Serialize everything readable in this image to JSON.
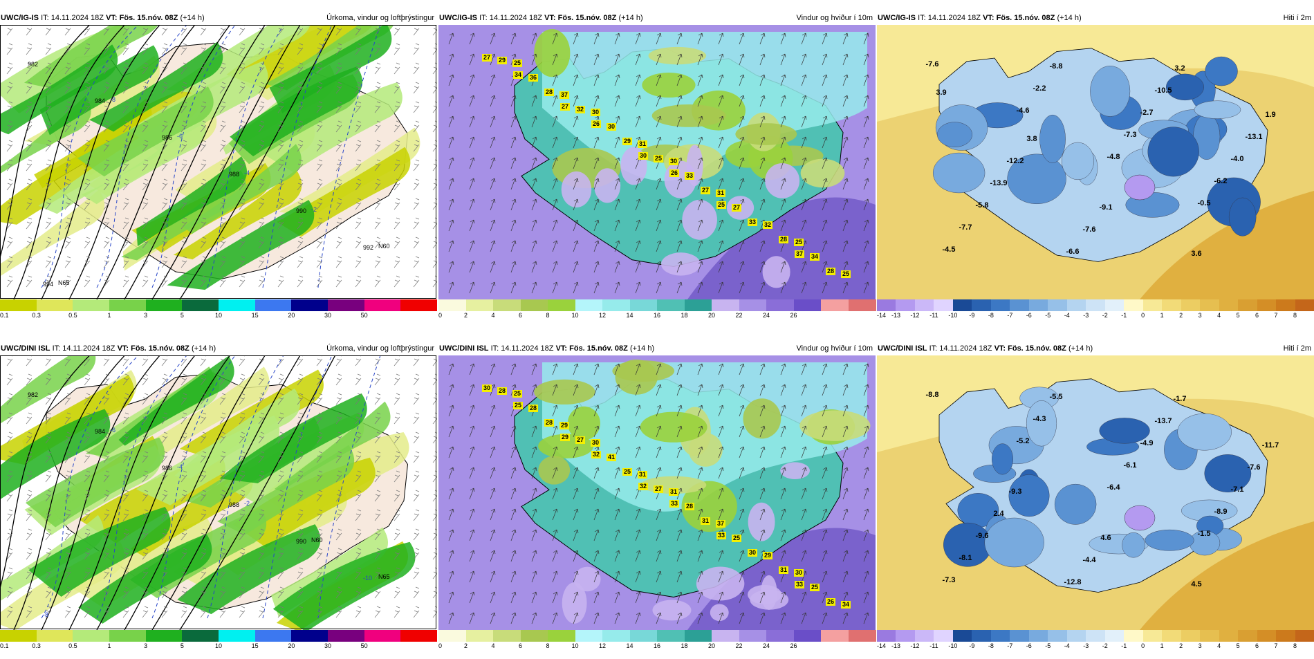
{
  "panels": [
    {
      "model": "UWC/IG-IS",
      "it_label": "IT:",
      "it": "14.11.2024 18Z",
      "vt_label": "VT:",
      "vt": "Fös. 15.nóv. 08Z",
      "lead": "(+14 h)",
      "title": "Úrkoma, vindur og loftþrýstingur",
      "type": "precip"
    },
    {
      "model": "UWC/IG-IS",
      "it_label": "IT:",
      "it": "14.11.2024 18Z",
      "vt_label": "VT:",
      "vt": "Fös. 15.nóv. 08Z",
      "lead": "(+14 h)",
      "title": "Vindur og hviður í 10m",
      "type": "wind"
    },
    {
      "model": "UWC/IG-IS",
      "it_label": "IT:",
      "it": "14.11.2024 18Z",
      "vt_label": "VT:",
      "vt": "Fös. 15.nóv. 08Z",
      "lead": "(+14 h)",
      "title": "Hiti í 2m",
      "type": "temp"
    },
    {
      "model": "UWC/DINI ISL",
      "it_label": "IT:",
      "it": "14.11.2024 18Z",
      "vt_label": "VT:",
      "vt": "Fös. 15.nóv. 08Z",
      "lead": "(+14 h)",
      "title": "Úrkoma, vindur og loftþrýstingur",
      "type": "precip"
    },
    {
      "model": "UWC/DINI ISL",
      "it_label": "IT:",
      "it": "14.11.2024 18Z",
      "vt_label": "VT:",
      "vt": "Fös. 15.nóv. 08Z",
      "lead": "(+14 h)",
      "title": "Vindur og hviður í 10m",
      "type": "wind"
    },
    {
      "model": "UWC/DINI ISL",
      "it_label": "IT:",
      "it": "14.11.2024 18Z",
      "vt_label": "VT:",
      "vt": "Fös. 15.nóv. 08Z",
      "lead": "(+14 h)",
      "title": "Hiti í 2m",
      "type": "temp"
    }
  ],
  "colorbars": {
    "precip": {
      "ticks": [
        "0.1",
        "0.3",
        "0.5",
        "1",
        "3",
        "5",
        "10",
        "15",
        "20",
        "30",
        "50"
      ],
      "colors": [
        "#c8d200",
        "#dfe65a",
        "#b4ea7a",
        "#78d24a",
        "#1fb01f",
        "#0a6a3c",
        "#00f0f0",
        "#3c78f0",
        "#00008c",
        "#78007e",
        "#f0007e",
        "#f00000"
      ]
    },
    "wind": {
      "ticks": [
        "0",
        "2",
        "4",
        "6",
        "8",
        "10",
        "12",
        "14",
        "16",
        "18",
        "20",
        "22",
        "24",
        "26"
      ],
      "colors": [
        "#fafade",
        "#e6f0a0",
        "#c8dc7a",
        "#a8c850",
        "#9ad23c",
        "#b4f5fa",
        "#96ebeb",
        "#78d8d8",
        "#50c0b4",
        "#2ca096",
        "#c8b4f0",
        "#a690e6",
        "#8a6ed8",
        "#6a4ec8",
        "#f4a0a0",
        "#e07070"
      ]
    },
    "temp": {
      "ticks": [
        "-14",
        "-13",
        "-12",
        "-11",
        "-10",
        "-9",
        "-8",
        "-7",
        "-6",
        "-5",
        "-4",
        "-3",
        "-2",
        "-1",
        "0",
        "1",
        "2",
        "3",
        "4",
        "5",
        "6",
        "7",
        "8"
      ],
      "colors": [
        "#9a7ae0",
        "#b49af0",
        "#cbb8f8",
        "#e0d4ff",
        "#1a4a96",
        "#2a62b0",
        "#3c78c4",
        "#5a92d2",
        "#78aade",
        "#96c0e8",
        "#b4d4f0",
        "#cde3f6",
        "#e2f0fa",
        "#fff9c8",
        "#f7e996",
        "#f2db78",
        "#eccd62",
        "#e6bf50",
        "#e0b040",
        "#d99f32",
        "#d48e26",
        "#cc7a1c",
        "#c4661a"
      ]
    }
  },
  "map_labels": {
    "precip_top": [
      "982",
      "984",
      "986",
      "988",
      "990",
      "992",
      "994",
      "-8",
      "-6",
      "-4",
      "-2",
      "N60",
      "N65"
    ],
    "precip_bot": [
      "982",
      "984",
      "986",
      "988",
      "990",
      "-10",
      "-8",
      "-6",
      "-4",
      "-2",
      "N60",
      "N65"
    ],
    "wind_top": [
      "27",
      "27",
      "30",
      "25",
      "37",
      "34",
      "26",
      "26",
      "33",
      "28",
      "28",
      "29",
      "27",
      "28",
      "29",
      "32",
      "25",
      "27",
      "34",
      "36",
      "30",
      "33",
      "32",
      "25",
      "37",
      "31",
      "31",
      "25",
      "25",
      "30",
      "30"
    ],
    "wind_bot": [
      "30",
      "29",
      "32",
      "33",
      "33",
      "25",
      "32",
      "33",
      "30",
      "26",
      "28",
      "25",
      "31",
      "31",
      "28",
      "27",
      "27",
      "25",
      "25",
      "28",
      "41",
      "28",
      "29",
      "34",
      "29",
      "31",
      "37",
      "30",
      "25",
      "30",
      "31"
    ],
    "temp_top": [
      "-7.6",
      "-4.6",
      "-4.8",
      "-0.5",
      "-4.5",
      "-2.2",
      "-7.3",
      "-6.2",
      "-7.7",
      "-8.8",
      "-2.7",
      "-4.0",
      "-5.8",
      "-6.6",
      "-10.5",
      "-13.1",
      "-13.9",
      "-7.6",
      "3.2",
      "1.9",
      "-12.2",
      "-9.1",
      "3.6",
      "3.9",
      "3.8"
    ],
    "temp_bot": [
      "-8.8",
      "-5.2",
      "-6.4",
      "-1.5",
      "-7.3",
      "-4.3",
      "-6.1",
      "-8.9",
      "-8.1",
      "-5.5",
      "-4.9",
      "-7.1",
      "-9.6",
      "-12.8",
      "-13.7",
      "-7.6",
      "2.4",
      "-4.4",
      "-1.7",
      "-11.7",
      "-9.3",
      "4.6",
      "4.5"
    ]
  }
}
